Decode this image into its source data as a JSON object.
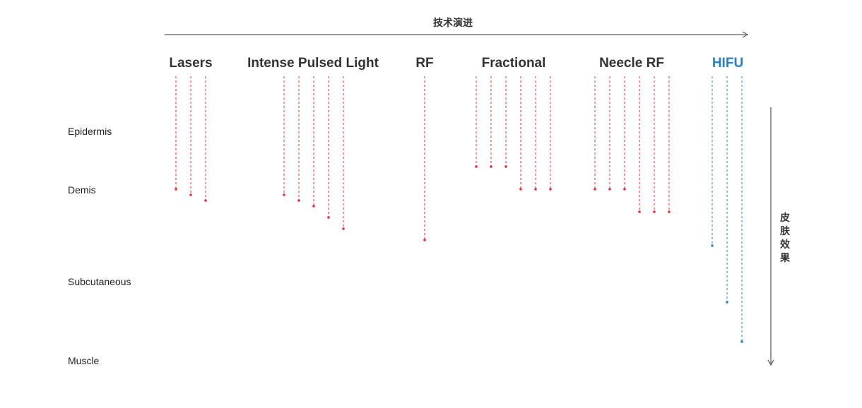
{
  "header": {
    "axis_label": "技术演进"
  },
  "side": {
    "axis_label_chars": [
      "皮",
      "肤",
      "效",
      "果"
    ]
  },
  "layers": [
    {
      "name": "Epidermis"
    },
    {
      "name": "Demis"
    },
    {
      "name": "Subcutaneous"
    },
    {
      "name": "Muscle"
    }
  ],
  "colors": {
    "red": "#e0303a",
    "blue": "#2a7fc0",
    "text": "#333333"
  },
  "technologies": [
    {
      "name": "Lasers",
      "color": "#333333",
      "line_color": "#e0303a",
      "line_count": 3
    },
    {
      "name": "Intense Pulsed Light",
      "color": "#333333",
      "line_color": "#e0303a",
      "line_count": 5
    },
    {
      "name": "RF",
      "color": "#333333",
      "line_color": "#e0303a",
      "line_count": 1
    },
    {
      "name": "Fractional",
      "color": "#333333",
      "line_color": "#e0303a",
      "line_count": 6
    },
    {
      "name": "Neecle RF",
      "color": "#333333",
      "line_color": "#e0303a",
      "line_count": 6
    },
    {
      "name": "HIFU",
      "color": "#2a7fc0",
      "line_color": "#2a7fc0",
      "line_count": 3
    }
  ]
}
